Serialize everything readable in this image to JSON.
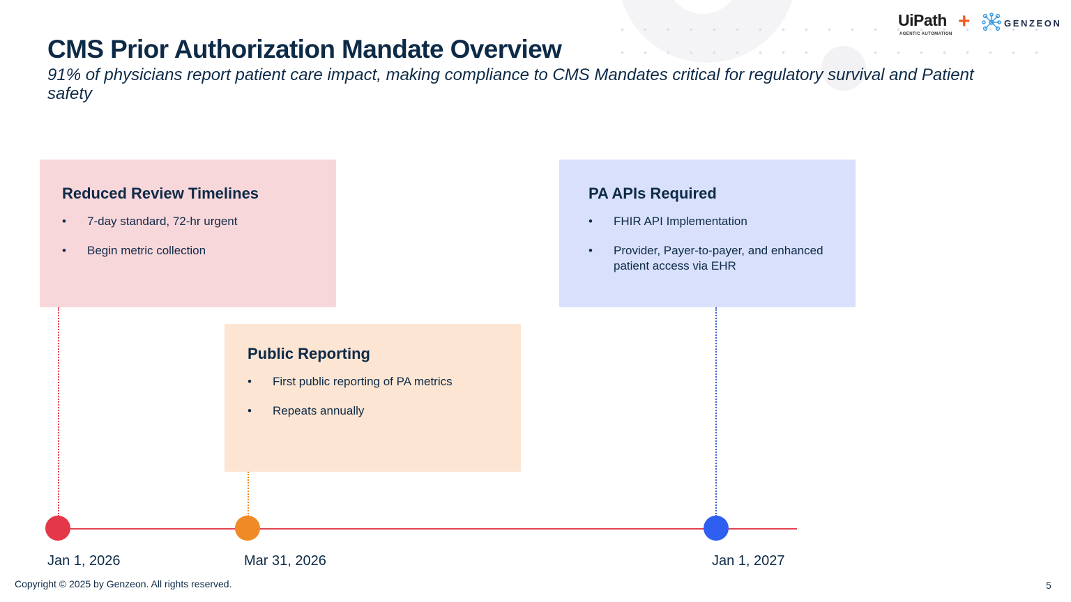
{
  "header": {
    "title": "CMS Prior Authorization Mandate Overview",
    "subtitle": "91% of physicians report patient care impact, making compliance to CMS Mandates critical for regulatory survival and Patient safety"
  },
  "logos": {
    "uipath": "UiPath",
    "uipath_tagline": "AGENTIC AUTOMATION",
    "plus": "+",
    "genzeon": "GENZEON"
  },
  "cards": [
    {
      "title": "Reduced Review Timelines",
      "bullets": [
        "7-day standard, 72-hr urgent",
        "Begin metric collection"
      ],
      "color": "#f8d7db"
    },
    {
      "title": "Public Reporting",
      "bullets": [
        "First public reporting of PA metrics",
        "Repeats annually"
      ],
      "color": "#fce5d3"
    },
    {
      "title": "PA APIs Required",
      "bullets": [
        "FHIR API Implementation",
        "Provider, Payer-to-payer, and enhanced patient access via EHR"
      ],
      "color": "#d8e0fb"
    }
  ],
  "timeline": {
    "milestones": [
      {
        "date": "Jan 1, 2026",
        "color": "#e4384a"
      },
      {
        "date": "Mar 31, 2026",
        "color": "#f08a24"
      },
      {
        "date": "Jan 1, 2027",
        "color": "#2f5ff0"
      }
    ],
    "axis_color": "#e0424f"
  },
  "footer": {
    "copyright": "Copyright © 2025 by Genzeon. All rights reserved.",
    "page_number": "5"
  }
}
